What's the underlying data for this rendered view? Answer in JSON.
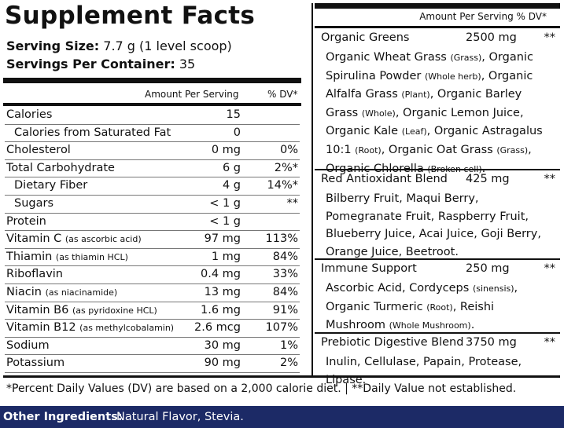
{
  "title": "Supplement Facts",
  "serving": {
    "size_label": "Serving Size:",
    "size_value": "7.7 g (1 level scoop)",
    "servings_label": "Servings Per Container:",
    "servings_value": "35"
  },
  "left_header": {
    "amount": "Amount Per Serving",
    "dv": "% DV*"
  },
  "left_rows": [
    {
      "name": "Calories",
      "amount": "15",
      "dv": ""
    },
    {
      "name": "Calories from Saturated Fat",
      "amount": "0",
      "dv": ""
    },
    {
      "name": "Cholesterol",
      "amount": "0 mg",
      "dv": "0%"
    },
    {
      "name": "Total Carbohydrate",
      "amount": "6 g",
      "dv": "2%*"
    },
    {
      "name": "Dietary Fiber",
      "amount": "4 g",
      "dv": "14%*"
    },
    {
      "name": "Sugars",
      "amount": "< 1 g",
      "dv": "**"
    },
    {
      "name": "Protein",
      "amount": "< 1 g",
      "dv": ""
    },
    {
      "name": "Vitamin C",
      "note": "(as ascorbic acid)",
      "amount": "97 mg",
      "dv": "113%"
    },
    {
      "name": "Thiamin",
      "note": "(as thiamin HCL)",
      "amount": "1 mg",
      "dv": "84%"
    },
    {
      "name": "Riboflavin",
      "amount": "0.4 mg",
      "dv": "33%"
    },
    {
      "name": "Niacin",
      "note": "(as niacinamide)",
      "amount": "13 mg",
      "dv": "84%"
    },
    {
      "name": "Vitamin B6",
      "note": "(as pyridoxine HCL)",
      "amount": "1.6 mg",
      "dv": "91%"
    },
    {
      "name": "Vitamin B12",
      "note": "(as methylcobalamin)",
      "amount": "2.6 mcg",
      "dv": "107%"
    },
    {
      "name": "Sodium",
      "amount": "30 mg",
      "dv": "1%"
    },
    {
      "name": "Potassium",
      "amount": "90 mg",
      "dv": "2%"
    }
  ],
  "right_header": "Amount Per Serving  % DV*",
  "blends": [
    {
      "name": "Organic Greens",
      "amount": "2500 mg",
      "dv": "**",
      "parts": [
        {
          "t": "Organic Wheat Grass "
        },
        {
          "s": "(Grass)"
        },
        {
          "t": ", Organic Spirulina Powder "
        },
        {
          "s": "(Whole herb)"
        },
        {
          "t": ", Organic Alfalfa Grass "
        },
        {
          "s": "(Plant)"
        },
        {
          "t": ", Organic Barley Grass "
        },
        {
          "s": "(Whole)"
        },
        {
          "t": ", Organic Lemon Juice, Organic Kale "
        },
        {
          "s": "(Leaf)"
        },
        {
          "t": ", Organic Astragalus 10:1 "
        },
        {
          "s": "(Root)"
        },
        {
          "t": ", Organic Oat Grass "
        },
        {
          "s": "(Grass)"
        },
        {
          "t": ", Organic Chlorella "
        },
        {
          "s": "(Broken cell)"
        },
        {
          "t": "."
        }
      ]
    },
    {
      "name": "Red Antioxidant Blend",
      "amount": "425 mg",
      "dv": "**",
      "parts": [
        {
          "t": "Bilberry Fruit, Maqui Berry, Pomegranate Fruit, Raspberry Fruit, Blueberry Juice, Acai Juice, Goji Berry, Orange Juice, Beetroot."
        }
      ]
    },
    {
      "name": "Immune Support",
      "amount": "250 mg",
      "dv": "**",
      "parts": [
        {
          "t": "Ascorbic Acid, Cordyceps "
        },
        {
          "s": "(sinensis)"
        },
        {
          "t": ", Organic Turmeric "
        },
        {
          "s": "(Root)"
        },
        {
          "t": ", Reishi Mushroom "
        },
        {
          "s": "(Whole Mushroom)"
        },
        {
          "t": "."
        }
      ]
    },
    {
      "name": "Prebiotic Digestive Blend",
      "amount": "3750 mg",
      "dv": "**",
      "parts": [
        {
          "t": "Inulin, Cellulase, Papain, Protease, Lipase."
        }
      ]
    }
  ],
  "footnote": "*Percent Daily Values (DV) are based on a 2,000 calorie diet.  |  **Daily Value not established.",
  "other_ingredients": {
    "label": "Other Ingredients:",
    "value": "Natural Flavor, Stevia."
  },
  "colors": {
    "text": "#111111",
    "banner": "#1c2a66",
    "banner_text": "#ffffff"
  }
}
